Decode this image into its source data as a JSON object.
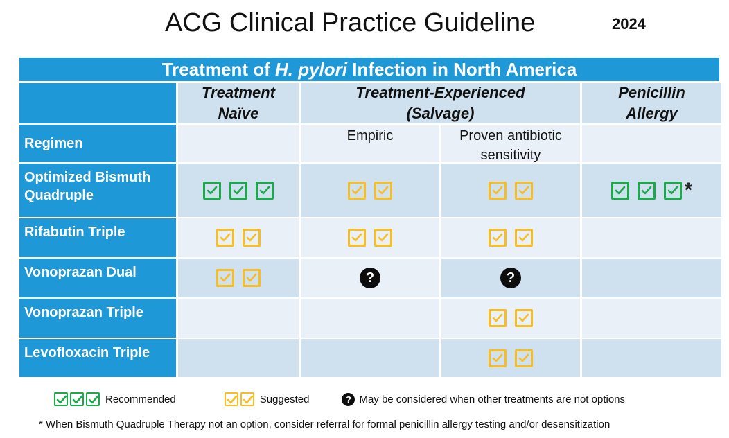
{
  "title": "ACG Clinical Practice Guideline",
  "year": "2024",
  "banner": {
    "prefix": "Treatment of ",
    "organism": "H. pylori",
    "suffix": " Infection in North America"
  },
  "columns": {
    "naive": "Treatment Naïve",
    "experienced": "Treatment-Experienced (Salvage)",
    "allergy": "Penicillin Allergy",
    "empiric": "Empiric",
    "proven": "Proven antibiotic sensitivity"
  },
  "rows": {
    "regimen": "Regimen",
    "bismuth": "Optimized Bismuth Quadruple",
    "rifabutin": "Rifabutin Triple",
    "vono_dual": "Vonoprazan Dual",
    "vono_triple": "Vonoprazan Triple",
    "levo": "Levofloxacin Triple"
  },
  "icons": {
    "recommended": "check-box-green",
    "suggested": "check-box-yellow",
    "maybe": "question-circle",
    "recommended_color": "#1aaa4a",
    "suggested_color": "#f7be23",
    "header_color": "#1e98d6",
    "question_glyph": "?",
    "asterisk": "*"
  },
  "legend": {
    "recommended": "Recommended",
    "suggested": "Suggested",
    "maybe": "May be considered when other treatments are not options"
  },
  "footnote": "* When Bismuth Quadruple Therapy not an option, consider referral for formal penicillin allergy testing and/or desensitization"
}
